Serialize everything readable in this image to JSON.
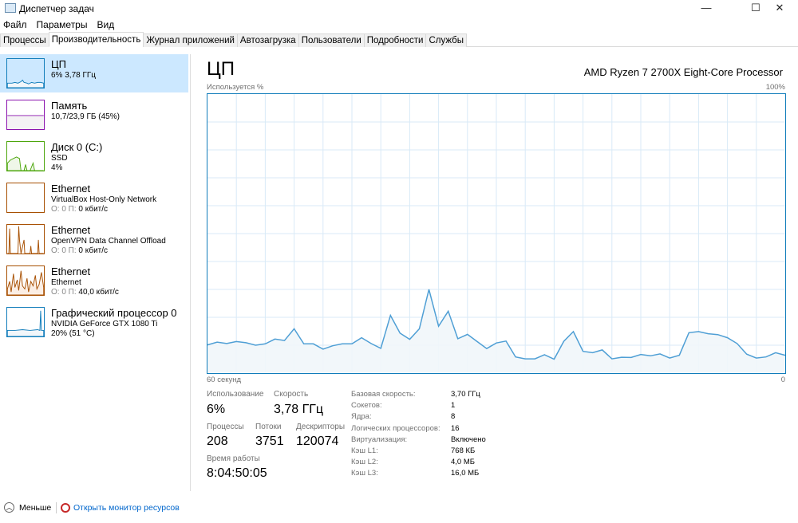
{
  "window": {
    "title": "Диспетчер задач",
    "minimize": "—",
    "maximize": "☐",
    "close": "✕"
  },
  "menu": [
    "Файл",
    "Параметры",
    "Вид"
  ],
  "tabs": [
    "Процессы",
    "Производительность",
    "Журнал приложений",
    "Автозагрузка",
    "Пользователи",
    "Подробности",
    "Службы"
  ],
  "active_tab": 1,
  "sidebar": [
    {
      "title": "ЦП",
      "sub": "6% 3,78 ГГц",
      "sub2": "",
      "color": "#117dbb"
    },
    {
      "title": "Память",
      "sub": "10,7/23,9 ГБ (45%)",
      "sub2": "",
      "color": "#8b12ae"
    },
    {
      "title": "Диск 0 (C:)",
      "sub": "SSD",
      "sub2": "4%",
      "color": "#4da60c"
    },
    {
      "title": "Ethernet",
      "sub": "VirtualBox Host-Only Network",
      "sub2_prefix": "О: 0 П:",
      "sub2": "0 кбит/с",
      "color": "#a74f01"
    },
    {
      "title": "Ethernet",
      "sub": "OpenVPN Data Channel Offload",
      "sub2_prefix": "О: 0 П:",
      "sub2": "0 кбит/с",
      "color": "#a74f01"
    },
    {
      "title": "Ethernet",
      "sub": "Ethernet",
      "sub2_prefix": "О: 0 П:",
      "sub2": "40,0 кбит/с",
      "color": "#a74f01"
    },
    {
      "title": "Графический процессор 0",
      "sub": "NVIDIA GeForce GTX 1080 Ti",
      "sub2": "20% (51 °C)",
      "color": "#117dbb"
    }
  ],
  "main": {
    "title": "ЦП",
    "processor": "AMD Ryzen 7 2700X Eight-Core Processor",
    "stats": {
      "usage_label": "Использование",
      "usage": "6%",
      "speed_label": "Скорость",
      "speed": "3,78 ГГц",
      "processes_label": "Процессы",
      "processes": "208",
      "threads_label": "Потоки",
      "threads": "3751",
      "handles_label": "Дескрипторы",
      "handles": "120074",
      "uptime_label": "Время работы",
      "uptime": "8:04:50:05"
    },
    "specs": [
      {
        "k": "Базовая скорость:",
        "v": "3,70 ГГц"
      },
      {
        "k": "Сокетов:",
        "v": "1"
      },
      {
        "k": "Ядра:",
        "v": "8"
      },
      {
        "k": "Логических процессоров:",
        "v": "16"
      },
      {
        "k": "Виртуализация:",
        "v": "Включено"
      },
      {
        "k": "Кэш L1:",
        "v": "768 КБ"
      },
      {
        "k": "Кэш L2:",
        "v": "4,0 МБ"
      },
      {
        "k": "Кэш L3:",
        "v": "16,0 МБ"
      }
    ]
  },
  "chart_data": {
    "type": "area",
    "ylabel": "Используется %",
    "ymax_label": "100%",
    "xlabel_left": "60 секунд",
    "xlabel_right": "0",
    "ylim": [
      0,
      100
    ],
    "xlim": [
      60,
      0
    ],
    "grid": true,
    "line_color": "#4f9fd5",
    "fill_color": "#f1f6fa",
    "grid_color": "#d9eaf7",
    "values": [
      10.1,
      11.1,
      10.6,
      11.3,
      10.9,
      10.0,
      10.5,
      12.2,
      11.7,
      15.9,
      10.5,
      10.5,
      8.6,
      9.8,
      10.5,
      10.5,
      12.7,
      10.6,
      8.9,
      20.7,
      14.3,
      12.1,
      15.9,
      30.0,
      16.8,
      22.2,
      12.3,
      13.9,
      11.3,
      8.8,
      10.8,
      11.5,
      5.8,
      5.1,
      5.1,
      6.6,
      5.0,
      11.4,
      14.9,
      7.8,
      7.3,
      8.3,
      5.1,
      5.7,
      5.6,
      6.7,
      6.2,
      6.9,
      5.4,
      6.4,
      14.5,
      14.9,
      14.1,
      13.8,
      12.7,
      10.6,
      6.8,
      5.4,
      5.8,
      7.3,
      6.4
    ]
  },
  "footer": {
    "less": "Меньше",
    "monitor": "Открыть монитор ресурсов"
  }
}
